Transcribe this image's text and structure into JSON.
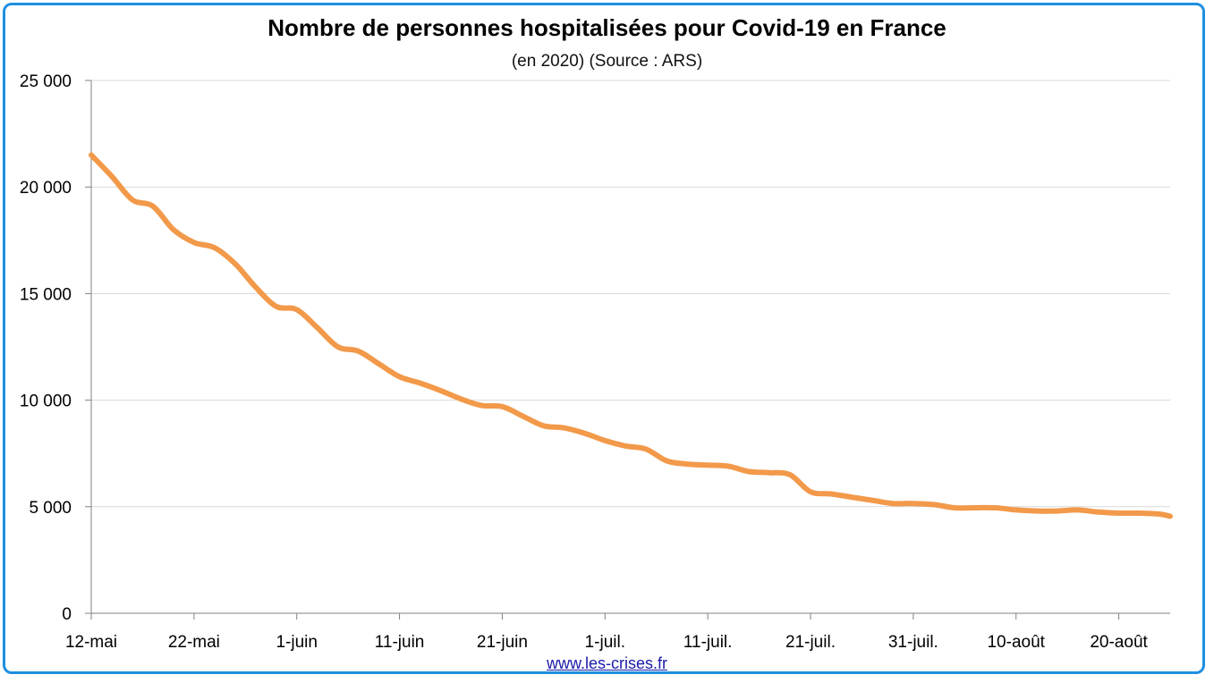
{
  "chart_data": {
    "type": "line",
    "title": "Nombre de personnes hospitalisées pour Covid-19 en France",
    "subtitle": "(en 2020) (Source : ARS)",
    "xlabel": "",
    "ylabel": "",
    "ylim": [
      0,
      25000
    ],
    "yticks": [
      0,
      5000,
      10000,
      15000,
      20000,
      25000
    ],
    "ytick_labels": [
      "0",
      "5 000",
      "10 000",
      "15 000",
      "20 000",
      "25 000"
    ],
    "xticks": [
      0,
      10,
      20,
      30,
      40,
      50,
      60,
      70,
      80,
      90,
      100
    ],
    "xtick_labels": [
      "12-mai",
      "22-mai",
      "1-juin",
      "11-juin",
      "21-juin",
      "1-juil.",
      "11-juil.",
      "21-juil.",
      "31-juil.",
      "10-août",
      "20-août"
    ],
    "xlim": [
      0,
      105
    ],
    "grid": "horizontal",
    "line_color": "#f2994a",
    "series": [
      {
        "name": "",
        "x": [
          0,
          2,
          4,
          6,
          8,
          10,
          12,
          14,
          16,
          18,
          20,
          22,
          24,
          26,
          28,
          30,
          32,
          34,
          36,
          38,
          40,
          42,
          44,
          46,
          48,
          50,
          52,
          54,
          56,
          58,
          60,
          62,
          64,
          66,
          68,
          70,
          72,
          74,
          76,
          78,
          80,
          82,
          84,
          86,
          88,
          90,
          92,
          94,
          96,
          98,
          100,
          102,
          104,
          105
        ],
        "y": [
          21500,
          20500,
          19400,
          19100,
          18000,
          17400,
          17150,
          16400,
          15300,
          14400,
          14250,
          13400,
          12500,
          12300,
          11700,
          11100,
          10800,
          10450,
          10050,
          9750,
          9700,
          9250,
          8800,
          8700,
          8450,
          8100,
          7850,
          7700,
          7150,
          7000,
          6950,
          6900,
          6650,
          6600,
          6500,
          5700,
          5600,
          5450,
          5300,
          5150,
          5150,
          5100,
          4950,
          4950,
          4950,
          4850,
          4800,
          4800,
          4850,
          4750,
          4700,
          4700,
          4650,
          4550
        ]
      }
    ]
  },
  "footer": {
    "link_text": "www.les-crises.fr"
  }
}
